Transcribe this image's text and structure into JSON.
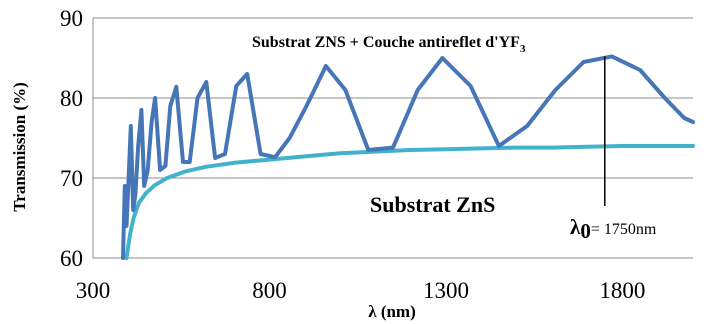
{
  "chart_data": {
    "type": "line",
    "title": "",
    "xlabel": "λ (nm)",
    "ylabel": "Transmission (%)",
    "xlim": [
      300,
      2000
    ],
    "ylim": [
      60,
      90
    ],
    "x_ticks": [
      "300",
      "800",
      "1300",
      "1800"
    ],
    "y_ticks": [
      "60",
      "70",
      "80",
      "90"
    ],
    "grid": "horizontal",
    "legend": "none",
    "series": [
      {
        "color": "#4676b8",
        "label_ref": "coated",
        "x": [
          385,
          390,
          395,
          400,
          407,
          414,
          420,
          428,
          437,
          445,
          455,
          466,
          476,
          490,
          505,
          519,
          536,
          555,
          574,
          596,
          621,
          646,
          674,
          706,
          737,
          775,
          816,
          857,
          905,
          960,
          1015,
          1080,
          1150,
          1220,
          1290,
          1370,
          1450,
          1530,
          1610,
          1690,
          1770,
          1850,
          1920,
          1975,
          2000
        ],
        "y": [
          60,
          69,
          64,
          69,
          76.5,
          66,
          68,
          74,
          78.5,
          69,
          71,
          77,
          80,
          71,
          71.5,
          79,
          81.4,
          72,
          72,
          80,
          82,
          72.5,
          73,
          81.5,
          83,
          73,
          72.6,
          75,
          79,
          84,
          81,
          73.5,
          73.8,
          81,
          85,
          81.5,
          74,
          76.5,
          81,
          84.5,
          85.2,
          83.5,
          80,
          77.5,
          77
        ]
      },
      {
        "color": "#42b2cb",
        "label_ref": "zns",
        "x": [
          395,
          405,
          415,
          430,
          450,
          475,
          510,
          560,
          620,
          700,
          800,
          900,
          1000,
          1100,
          1200,
          1300,
          1400,
          1500,
          1600,
          1700,
          1800,
          1900,
          2000
        ],
        "y": [
          60,
          63,
          65,
          66.9,
          68.1,
          69.1,
          70,
          70.8,
          71.4,
          71.9,
          72.3,
          72.7,
          73.1,
          73.3,
          73.5,
          73.6,
          73.7,
          73.8,
          73.8,
          73.9,
          74,
          74,
          74
        ]
      }
    ],
    "annotations": {
      "coated": "Substrat ZNS + Couche antireflet d'YF",
      "coated_sub": "3",
      "zns": "Substrat ZnS",
      "lambda_symbol": "λ",
      "lambda_sub": "0",
      "lambda_value": "= 1750nm"
    },
    "marker_x": 1750,
    "marker_top": 85.2,
    "marker_bottom": 74
  }
}
